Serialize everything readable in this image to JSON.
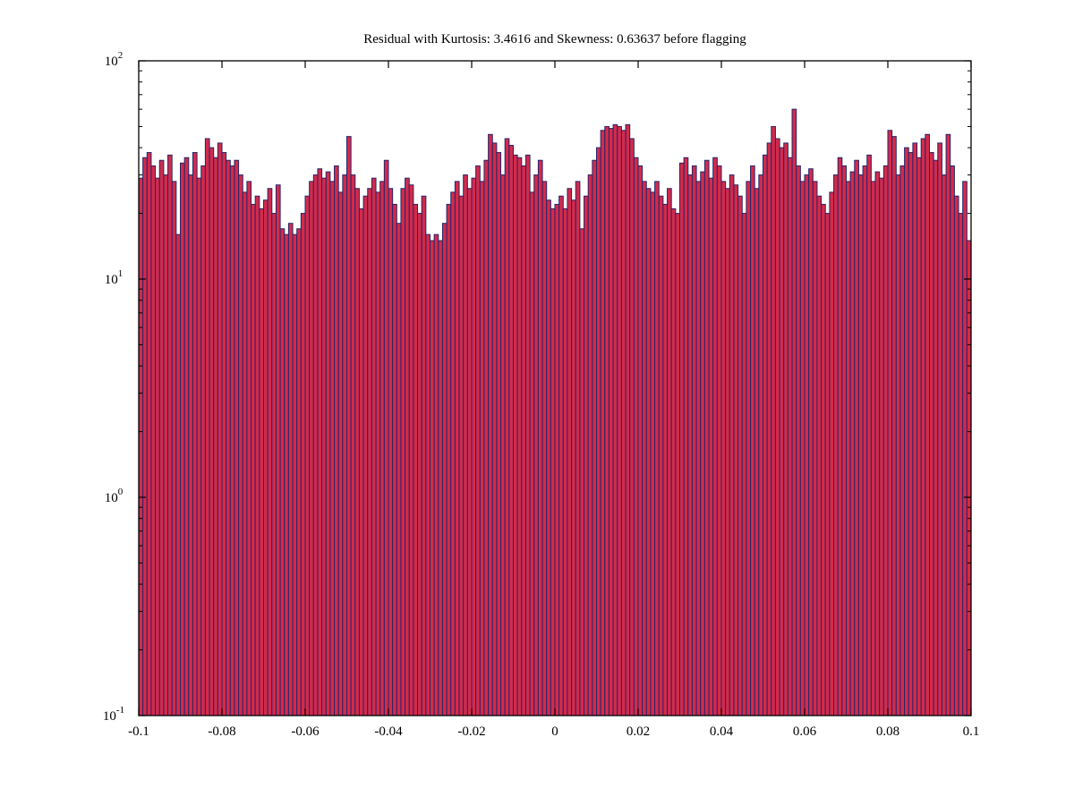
{
  "figure": {
    "background": "#ffffff"
  },
  "chart_data": {
    "type": "bar",
    "subtype": "histogram",
    "title": "Residual with Kurtosis: 3.4616 and Skewness: 0.63637 before flagging",
    "xlabel": "",
    "ylabel": "",
    "xlim": [
      -0.1,
      0.1
    ],
    "ylim": [
      0.1,
      100
    ],
    "yscale": "log",
    "grid": false,
    "legend": "none",
    "x_tick_values": [
      -0.1,
      -0.08,
      -0.06,
      -0.04,
      -0.02,
      0,
      0.02,
      0.04,
      0.06,
      0.08,
      0.1
    ],
    "x_tick_labels": [
      "-0.1",
      "-0.08",
      "-0.06",
      "-0.04",
      "-0.02",
      "0",
      "0.02",
      "0.04",
      "0.06",
      "0.08",
      "0.1"
    ],
    "y_tick_base": "10",
    "y_tick_exponents": [
      -1,
      0,
      1,
      2
    ],
    "bin_start": -0.1,
    "bin_width": 0.001,
    "values": [
      29,
      36,
      38,
      33,
      29,
      35,
      30,
      37,
      28,
      16,
      34,
      36,
      30,
      38,
      29,
      33,
      44,
      40,
      36,
      42,
      38,
      35,
      33,
      35,
      30,
      25,
      28,
      22,
      24,
      21,
      23,
      26,
      20,
      27,
      17,
      16,
      18,
      16,
      17,
      20,
      24,
      28,
      30,
      32,
      29,
      31,
      28,
      33,
      25,
      30,
      45,
      30,
      26,
      21,
      24,
      26,
      29,
      25,
      28,
      35,
      26,
      22,
      18,
      26,
      29,
      27,
      22,
      20,
      24,
      16,
      15,
      16,
      15,
      18,
      22,
      25,
      28,
      24,
      30,
      26,
      29,
      33,
      28,
      35,
      46,
      42,
      38,
      30,
      44,
      41,
      37,
      36,
      33,
      37,
      25,
      30,
      35,
      28,
      23,
      21,
      22,
      24,
      21,
      26,
      23,
      28,
      17,
      24,
      30,
      35,
      40,
      48,
      50,
      49,
      51,
      50,
      48,
      51,
      44,
      36,
      33,
      28,
      26,
      25,
      28,
      24,
      22,
      26,
      21,
      20,
      34,
      36,
      30,
      33,
      28,
      31,
      35,
      29,
      36,
      33,
      28,
      26,
      30,
      27,
      24,
      20,
      28,
      33,
      26,
      30,
      37,
      42,
      50,
      44,
      40,
      42,
      36,
      60,
      33,
      28,
      30,
      32,
      28,
      24,
      22,
      20,
      25,
      30,
      36,
      33,
      28,
      31,
      35,
      30,
      33,
      37,
      28,
      31,
      29,
      33,
      48,
      45,
      30,
      33,
      40,
      38,
      42,
      36,
      44,
      46,
      38,
      35,
      42,
      30,
      46,
      33,
      24,
      20,
      28,
      15
    ],
    "colors": {
      "bar_fill": "#d42a4a",
      "bar_edge": "#23266b",
      "axis": "#000000",
      "background": "#ffffff"
    }
  }
}
